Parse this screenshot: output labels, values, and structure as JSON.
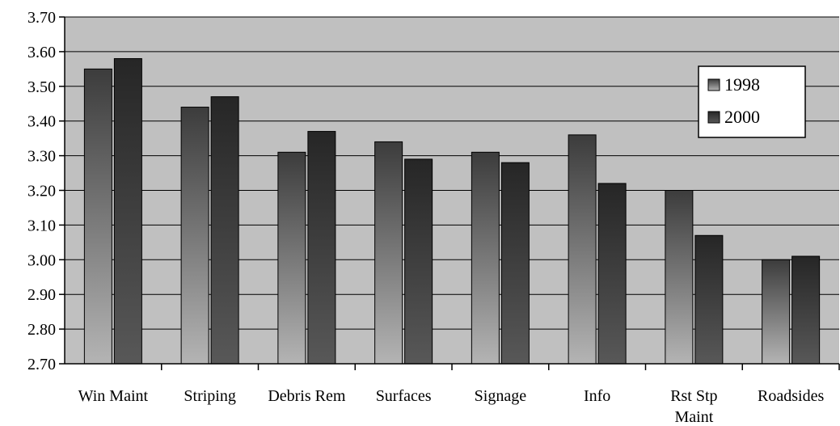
{
  "chart_data": {
    "type": "bar",
    "title": "",
    "xlabel": "",
    "ylabel": "",
    "categories": [
      [
        "Win Maint"
      ],
      [
        "Striping"
      ],
      [
        "Debris Rem"
      ],
      [
        "Surfaces"
      ],
      [
        "Signage"
      ],
      [
        "Info"
      ],
      [
        "Rst Stp",
        "Maint"
      ],
      [
        "Roadsides"
      ]
    ],
    "series": [
      {
        "name": "1998",
        "values": [
          3.55,
          3.44,
          3.31,
          3.34,
          3.31,
          3.36,
          3.2,
          3.0
        ]
      },
      {
        "name": "2000",
        "values": [
          3.58,
          3.47,
          3.37,
          3.29,
          3.28,
          3.22,
          3.07,
          3.01
        ]
      }
    ],
    "ylim": [
      2.7,
      3.7
    ],
    "yticks": [
      "2.70",
      "2.80",
      "2.90",
      "3.00",
      "3.10",
      "3.20",
      "3.30",
      "3.40",
      "3.50",
      "3.60",
      "3.70"
    ],
    "grid": true,
    "legend_position": "right",
    "colors": {
      "plot_background": "#c0c0c0",
      "series_1998_light": "#b4b4b4",
      "series_1998_dark": "#3c3c3c",
      "series_2000_light": "#585858",
      "series_2000_dark": "#262626"
    }
  }
}
